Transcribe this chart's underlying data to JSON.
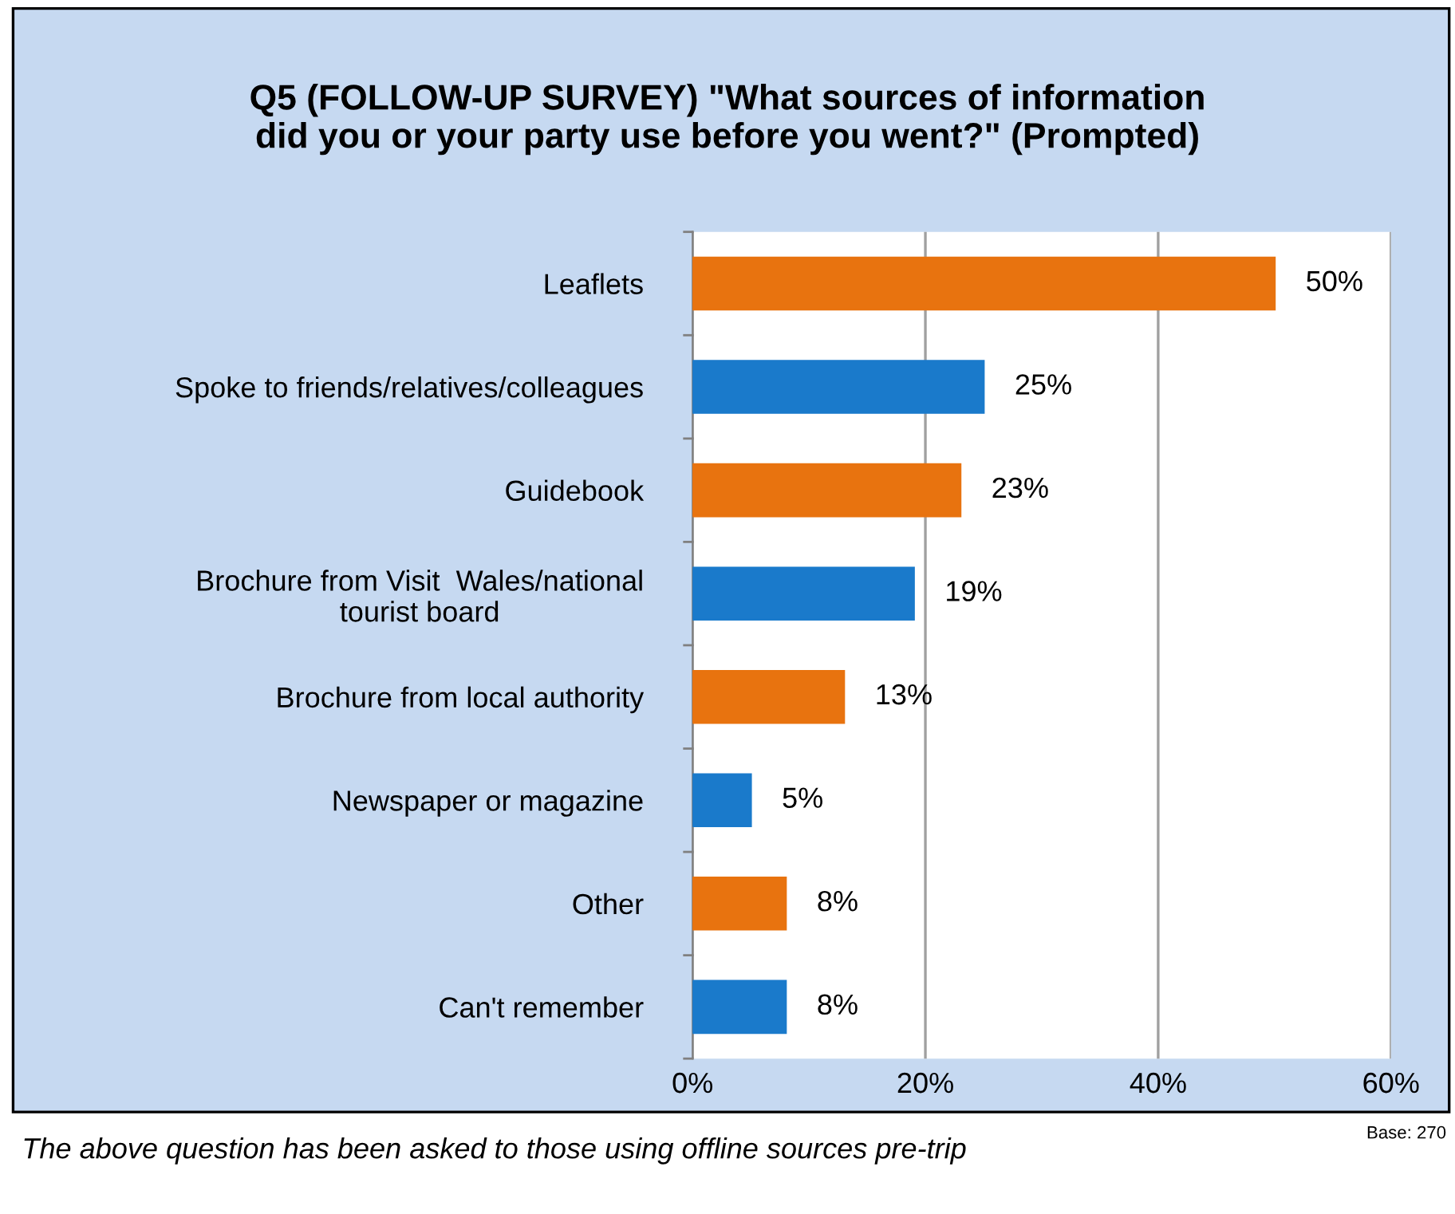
{
  "chart_data": {
    "type": "bar",
    "orientation": "horizontal",
    "title": "Q5 (FOLLOW-UP SURVEY) \"What sources of information\ndid you or your party use before you went?\" (Prompted)",
    "categories": [
      "Leaflets",
      "Spoke to friends/relatives/colleagues",
      "Guidebook",
      "Brochure from Visit  Wales/national\ntourist board",
      "Brochure from local authority",
      "Newspaper or magazine",
      "Other",
      "Can't remember"
    ],
    "values": [
      50,
      25,
      23,
      19,
      13,
      5,
      8,
      8
    ],
    "value_labels": [
      "50%",
      "25%",
      "23%",
      "19%",
      "13%",
      "5%",
      "8%",
      "8%"
    ],
    "colors": [
      "#e8730f",
      "#1a7acb",
      "#e8730f",
      "#1a7acb",
      "#e8730f",
      "#1a7acb",
      "#e8730f",
      "#1a7acb"
    ],
    "xlim": [
      0,
      60
    ],
    "xticks": [
      {
        "value": 0,
        "label": "0%"
      },
      {
        "value": 20,
        "label": "20%"
      },
      {
        "value": 40,
        "label": "40%"
      },
      {
        "value": 60,
        "label": "60%"
      }
    ],
    "grid": "x",
    "legend": false,
    "annotations": [
      "The above question has been asked to those using offline sources pre-trip",
      "Base: 270"
    ]
  }
}
